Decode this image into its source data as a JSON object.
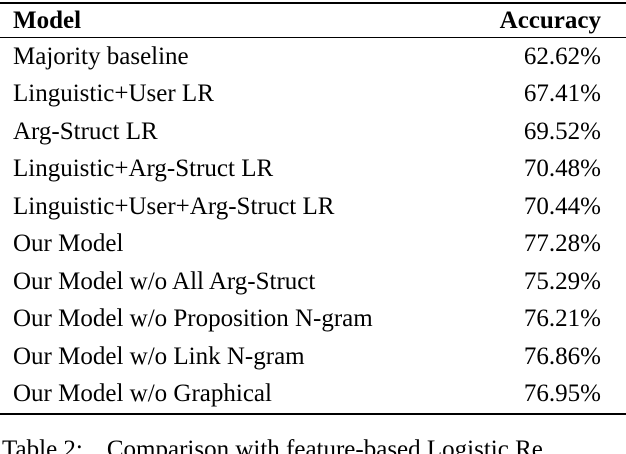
{
  "table": {
    "columns": [
      "Model",
      "Accuracy"
    ],
    "rows": [
      {
        "model": "Majority baseline",
        "accuracy": "62.62%",
        "bold": false
      },
      {
        "model": "Linguistic+User LR",
        "accuracy": "67.41%",
        "bold": false
      },
      {
        "model": "Arg-Struct LR",
        "accuracy": "69.52%",
        "bold": false
      },
      {
        "model": "Linguistic+Arg-Struct LR",
        "accuracy": "70.48%",
        "bold": false
      },
      {
        "model": "Linguistic+User+Arg-Struct LR",
        "accuracy": "70.44%",
        "bold": false
      },
      {
        "model": "Our Model",
        "accuracy": "77.28%",
        "bold": true
      },
      {
        "model": "Our Model w/o All Arg-Struct",
        "accuracy": "75.29%",
        "bold": false
      },
      {
        "model": "Our Model w/o Proposition N-gram",
        "accuracy": "76.21%",
        "bold": false
      },
      {
        "model": "Our Model w/o Link N-gram",
        "accuracy": "76.86%",
        "bold": false
      },
      {
        "model": "Our Model w/o Graphical",
        "accuracy": "76.95%",
        "bold": false
      }
    ]
  },
  "caption": {
    "label": "Table 2:",
    "text": "Comparison with feature-based Logistic Re"
  },
  "colors": {
    "text": "#000000",
    "background": "#ffffff",
    "rule": "#000000"
  }
}
